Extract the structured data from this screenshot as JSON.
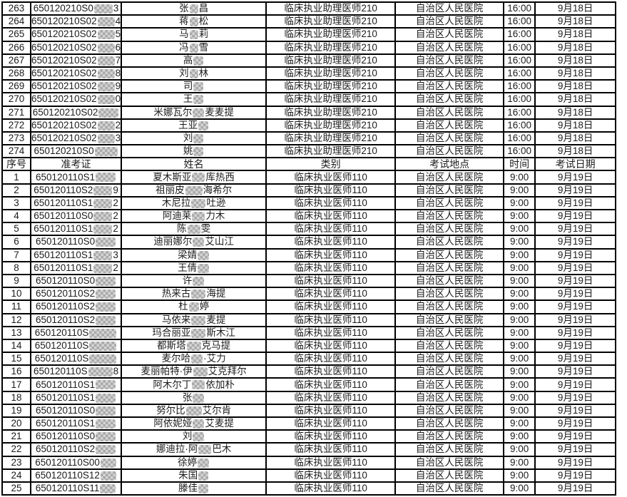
{
  "table": {
    "headers": [
      "序号",
      "准考证",
      "姓名",
      "类别",
      "考试地点",
      "时间",
      "考试日期"
    ],
    "section_a": {
      "category": "临床执业助理医师210",
      "location": "自治区人民医院",
      "time": "16:00",
      "date": "9月18日",
      "rows": [
        {
          "no": "263",
          "prefix": "650120210S0",
          "bw": 26,
          "suffix": "3",
          "name": [
            {
              "t": "张"
            },
            {
              "b": 12
            },
            {
              "t": "昌"
            }
          ]
        },
        {
          "no": "264",
          "prefix": "650120210S02",
          "bw": 24,
          "suffix": "4",
          "name": [
            {
              "t": "蒋"
            },
            {
              "b": 12
            },
            {
              "t": "松"
            }
          ]
        },
        {
          "no": "265",
          "prefix": "650120210S02",
          "bw": 24,
          "suffix": "5",
          "name": [
            {
              "t": "马"
            },
            {
              "b": 12
            },
            {
              "t": "莉"
            }
          ]
        },
        {
          "no": "266",
          "prefix": "650120210S02",
          "bw": 24,
          "suffix": "6",
          "name": [
            {
              "t": "冯"
            },
            {
              "b": 12
            },
            {
              "t": "雪"
            }
          ]
        },
        {
          "no": "267",
          "prefix": "650120210S02",
          "bw": 24,
          "suffix": "7",
          "name": [
            {
              "t": "高"
            },
            {
              "b": 14
            }
          ]
        },
        {
          "no": "268",
          "prefix": "650120210S02",
          "bw": 24,
          "suffix": "8",
          "name": [
            {
              "t": "刘"
            },
            {
              "b": 12
            },
            {
              "t": "林"
            }
          ]
        },
        {
          "no": "269",
          "prefix": "650120210S02",
          "bw": 24,
          "suffix": "9",
          "name": [
            {
              "t": "司"
            },
            {
              "b": 14
            }
          ]
        },
        {
          "no": "270",
          "prefix": "650120210S02",
          "bw": 24,
          "suffix": "0",
          "name": [
            {
              "t": "王"
            },
            {
              "b": 14
            }
          ]
        },
        {
          "no": "271",
          "prefix": "650120210S02",
          "bw": 28,
          "suffix": "",
          "name": [
            {
              "t": "米娜瓦尔"
            },
            {
              "b": 16
            },
            {
              "t": "麦麦提"
            }
          ]
        },
        {
          "no": "272",
          "prefix": "650120210S02",
          "bw": 24,
          "suffix": "2",
          "name": [
            {
              "t": "王亚"
            },
            {
              "b": 14
            }
          ]
        },
        {
          "no": "273",
          "prefix": "650120210S02",
          "bw": 24,
          "suffix": "3",
          "name": [
            {
              "t": "刘"
            },
            {
              "b": 14
            }
          ]
        },
        {
          "no": "274",
          "prefix": "650120210S0",
          "bw": 32,
          "suffix": "",
          "name": [
            {
              "t": "姚"
            },
            {
              "b": 14
            }
          ]
        }
      ]
    },
    "section_b": {
      "category": "临床执业医师110",
      "location": "自治区人民医院",
      "time": "9:00",
      "date": "9月19日",
      "rows": [
        {
          "no": "1",
          "prefix": "650120110S1",
          "bw": 28,
          "suffix": "",
          "name": [
            {
              "t": "夏木斯亚"
            },
            {
              "b": 18
            },
            {
              "t": "库热西"
            }
          ]
        },
        {
          "no": "2",
          "prefix": "650120110S2",
          "bw": 26,
          "suffix": "9",
          "name": [
            {
              "t": "祖丽皮"
            },
            {
              "b": 24
            },
            {
              "t": "海希尔"
            }
          ]
        },
        {
          "no": "3",
          "prefix": "650120110S1",
          "bw": 26,
          "suffix": "2",
          "name": [
            {
              "t": "木尼拉"
            },
            {
              "b": 20
            },
            {
              "t": "吐逊"
            }
          ]
        },
        {
          "no": "4",
          "prefix": "650120110S0",
          "bw": 26,
          "suffix": "2",
          "name": [
            {
              "t": "阿迪莱"
            },
            {
              "b": 18
            },
            {
              "t": "力木"
            }
          ]
        },
        {
          "no": "5",
          "prefix": "650120110S1",
          "bw": 26,
          "suffix": "2",
          "name": [
            {
              "t": "陈"
            },
            {
              "b": 18
            },
            {
              "t": "雯"
            }
          ]
        },
        {
          "no": "6",
          "prefix": "650120110S0",
          "bw": 28,
          "suffix": "",
          "name": [
            {
              "t": "迪丽娜尔"
            },
            {
              "b": 16
            },
            {
              "t": "艾山江"
            }
          ]
        },
        {
          "no": "7",
          "prefix": "650120110S1",
          "bw": 26,
          "suffix": "3",
          "name": [
            {
              "t": "梁婧"
            },
            {
              "b": 16
            }
          ]
        },
        {
          "no": "8",
          "prefix": "650120110S1",
          "bw": 26,
          "suffix": "2",
          "name": [
            {
              "t": "王倩"
            },
            {
              "b": 16
            }
          ]
        },
        {
          "no": "9",
          "prefix": "650120110S0",
          "bw": 28,
          "suffix": "",
          "name": [
            {
              "t": "许"
            },
            {
              "b": 16
            }
          ]
        },
        {
          "no": "10",
          "prefix": "650120110S2",
          "bw": 28,
          "suffix": "",
          "name": [
            {
              "t": "热来古"
            },
            {
              "b": 20
            },
            {
              "t": "海提"
            }
          ]
        },
        {
          "no": "11",
          "prefix": "650120110S2",
          "bw": 28,
          "suffix": "",
          "name": [
            {
              "t": "杜"
            },
            {
              "b": 14
            },
            {
              "t": "婷"
            }
          ]
        },
        {
          "no": "12",
          "prefix": "650120110S2",
          "bw": 28,
          "suffix": "",
          "name": [
            {
              "t": "马依来"
            },
            {
              "b": 20
            },
            {
              "t": "麦提"
            }
          ]
        },
        {
          "no": "13",
          "prefix": "650120110S",
          "bw": 38,
          "suffix": "",
          "name": [
            {
              "t": "玛合丽亚"
            },
            {
              "b": 20
            },
            {
              "t": "斯木江"
            }
          ]
        },
        {
          "no": "14",
          "prefix": "650120110S",
          "bw": 38,
          "suffix": "",
          "name": [
            {
              "t": "都斯塔"
            },
            {
              "b": 20
            },
            {
              "t": "克马提"
            }
          ]
        },
        {
          "no": "15",
          "prefix": "650120110S",
          "bw": 38,
          "suffix": "",
          "name": [
            {
              "t": "麦尔哈"
            },
            {
              "b": 16
            },
            {
              "t": "·艾力"
            }
          ]
        },
        {
          "no": "16",
          "prefix": "650120110S",
          "bw": 34,
          "suffix": "8",
          "name": [
            {
              "t": "麦丽帕特·伊"
            },
            {
              "b": 20
            },
            {
              "t": "艾克拜尔"
            }
          ]
        },
        {
          "no": "17",
          "prefix": "650120110S1",
          "bw": 28,
          "suffix": "",
          "name": [
            {
              "t": "阿木尔丁"
            },
            {
              "b": 18
            },
            {
              "t": "依加朴"
            }
          ]
        },
        {
          "no": "18",
          "prefix": "650120110S1",
          "bw": 28,
          "suffix": "",
          "name": [
            {
              "t": "张"
            },
            {
              "b": 16
            }
          ]
        },
        {
          "no": "19",
          "prefix": "650120110S0",
          "bw": 28,
          "suffix": "",
          "name": [
            {
              "t": "努尔比"
            },
            {
              "b": 22
            },
            {
              "t": "艾尔肯"
            }
          ]
        },
        {
          "no": "20",
          "prefix": "650120110S1",
          "bw": 28,
          "suffix": "",
          "name": [
            {
              "t": "阿依妮娅"
            },
            {
              "b": 16
            },
            {
              "t": "艾麦提"
            }
          ]
        },
        {
          "no": "21",
          "prefix": "650120110S0",
          "bw": 28,
          "suffix": "",
          "name": [
            {
              "t": "刘"
            },
            {
              "b": 16
            }
          ]
        },
        {
          "no": "22",
          "prefix": "650120110S2",
          "bw": 28,
          "suffix": "",
          "name": [
            {
              "t": "娜迪拉·阿"
            },
            {
              "b": 18
            },
            {
              "t": "巴木"
            }
          ]
        },
        {
          "no": "23",
          "prefix": "650120110S00",
          "bw": 22,
          "suffix": "",
          "name": [
            {
              "t": "徐婷"
            },
            {
              "b": 16
            }
          ]
        },
        {
          "no": "24",
          "prefix": "650120110S12",
          "bw": 22,
          "suffix": "",
          "name": [
            {
              "t": "朱国"
            },
            {
              "b": 14
            }
          ]
        },
        {
          "no": "25",
          "prefix": "650120110S11",
          "bw": 22,
          "suffix": "",
          "name": [
            {
              "t": "滕佳"
            },
            {
              "b": 14
            }
          ]
        }
      ]
    },
    "colors": {
      "border": "#000000",
      "text": "#1c1c1c",
      "redact_dark": "#a9a9a9",
      "redact_light": "#d4d4d4"
    }
  }
}
